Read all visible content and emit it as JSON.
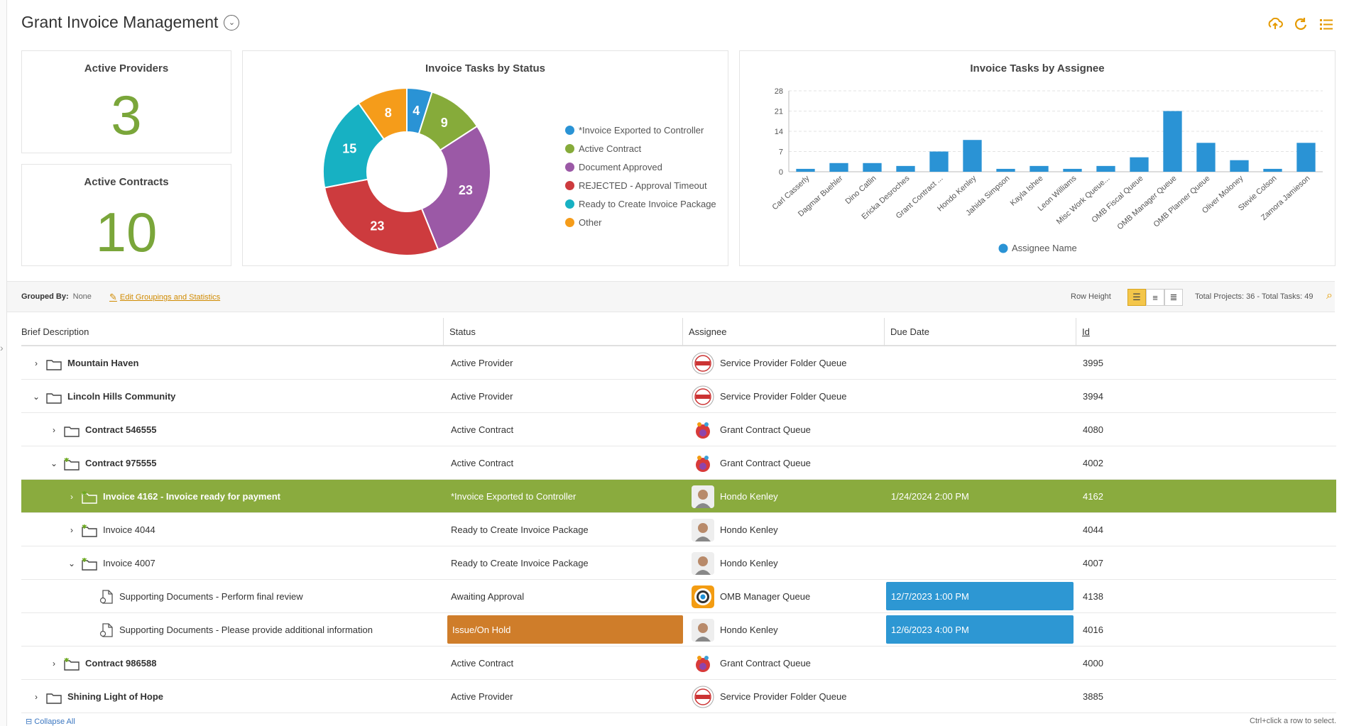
{
  "header": {
    "title": "Grant Invoice Management",
    "dropdown_icon": "chevron-down-icon",
    "icons": [
      "cloud-upload-icon",
      "refresh-icon",
      "list-icon"
    ]
  },
  "cards": {
    "active_providers": {
      "title": "Active Providers",
      "value": "3"
    },
    "active_contracts": {
      "title": "Active Contracts",
      "value": "10"
    }
  },
  "pie": {
    "title": "Invoice Tasks by Status",
    "slices": [
      {
        "label": "*Invoice Exported to Controller",
        "value": 4,
        "color": "#2a93d5"
      },
      {
        "label": "Active Contract",
        "value": 9,
        "color": "#86ab3a"
      },
      {
        "label": "Document Approved",
        "value": 23,
        "color": "#9b59a6"
      },
      {
        "label": "REJECTED - Approval Timeout",
        "value": 23,
        "color": "#cd3b3e"
      },
      {
        "label": "Ready to Create Invoice Package",
        "value": 15,
        "color": "#17b1c3"
      },
      {
        "label": "Other",
        "value": 8,
        "color": "#f59c1a"
      }
    ]
  },
  "chart_data": {
    "type": "bar",
    "title": "Invoice Tasks by Assignee",
    "categories": [
      "Carl Casserly",
      "Dagmar Buehler",
      "Dino Catlin",
      "Ericka Desroches",
      "Grant Contract ...",
      "Hondo Kenley",
      "Jahida Simpson",
      "Kayla Ishee",
      "Leon Williams",
      "Misc Work Queue...",
      "OMB Fiscal Queue",
      "OMB Manager Queue",
      "OMB Planner Queue",
      "Oliver Moloney",
      "Stevie Colson",
      "Zamora Jamieson"
    ],
    "series": [
      {
        "name": "Assignee Name",
        "values": [
          1,
          3,
          3,
          2,
          7,
          11,
          1,
          2,
          1,
          2,
          5,
          21,
          10,
          4,
          1,
          10
        ],
        "color": "#2a93d5"
      }
    ],
    "yticks": [
      "0",
      "7",
      "14",
      "21",
      "28"
    ],
    "ylim": [
      0,
      28
    ],
    "grid": true,
    "legend": "bottom"
  },
  "toolbar": {
    "grouped_label": "Grouped By:",
    "grouped_value": "None",
    "edit_link": "Edit Groupings and Statistics",
    "row_height_label": "Row Height",
    "totals": "Total Projects: 36 - Total Tasks: 49"
  },
  "table": {
    "columns": [
      "Brief Description",
      "Status",
      "Assignee",
      "Due Date",
      "Id"
    ],
    "rows": [
      {
        "name": "Mountain Haven",
        "status": "Active Provider",
        "assignee": "Service Provider Folder Queue",
        "due": "",
        "id": "3995",
        "indent": 0,
        "chev": "›",
        "icon": "folder",
        "avatar": "stamp",
        "bold": true
      },
      {
        "name": "Lincoln Hills Community",
        "status": "Active Provider",
        "assignee": "Service Provider Folder Queue",
        "due": "",
        "id": "3994",
        "indent": 0,
        "chev": "⌄",
        "icon": "folder",
        "avatar": "stamp",
        "bold": true
      },
      {
        "name": "Contract 546555",
        "status": "Active Contract",
        "assignee": "Grant Contract Queue",
        "due": "",
        "id": "4080",
        "indent": 1,
        "chev": "›",
        "icon": "folder",
        "avatar": "family",
        "bold": true
      },
      {
        "name": "Contract 975555",
        "status": "Active Contract",
        "assignee": "Grant Contract Queue",
        "due": "",
        "id": "4002",
        "indent": 1,
        "chev": "⌄",
        "icon": "folder-star",
        "avatar": "family",
        "bold": true
      },
      {
        "name": "Invoice 4162 - Invoice ready for payment",
        "status": "*Invoice Exported to Controller",
        "assignee": "Hondo Kenley",
        "due": "1/24/2024 2:00 PM",
        "id": "4162",
        "indent": 2,
        "chev": "›",
        "icon": "folder-star",
        "avatar": "person",
        "bold": true,
        "selected": true
      },
      {
        "name": "Invoice 4044",
        "status": "Ready to Create Invoice Package",
        "assignee": "Hondo Kenley",
        "due": "",
        "id": "4044",
        "indent": 2,
        "chev": "›",
        "icon": "folder-star",
        "avatar": "person",
        "bold": false
      },
      {
        "name": "Invoice 4007",
        "status": "Ready to Create Invoice Package",
        "assignee": "Hondo Kenley",
        "due": "",
        "id": "4007",
        "indent": 2,
        "chev": "⌄",
        "icon": "folder-star",
        "avatar": "person",
        "bold": false
      },
      {
        "name": "Supporting Documents - Perform final review",
        "status": "Awaiting Approval",
        "assignee": "OMB Manager Queue",
        "due": "12/7/2023 1:00 PM",
        "id": "4138",
        "indent": 3,
        "chev": "",
        "icon": "doc",
        "avatar": "target",
        "bold": false,
        "due_badge": true
      },
      {
        "name": "Supporting Documents - Please provide additional information",
        "status": "Issue/On Hold",
        "assignee": "Hondo Kenley",
        "due": "12/6/2023 4:00 PM",
        "id": "4016",
        "indent": 3,
        "chev": "",
        "icon": "doc",
        "avatar": "person",
        "bold": false,
        "due_badge": true,
        "status_badge": true
      },
      {
        "name": "Contract 986588",
        "status": "Active Contract",
        "assignee": "Grant Contract Queue",
        "due": "",
        "id": "4000",
        "indent": 1,
        "chev": "›",
        "icon": "folder-star",
        "avatar": "family",
        "bold": true
      },
      {
        "name": "Shining Light of Hope",
        "status": "Active Provider",
        "assignee": "Service Provider Folder Queue",
        "due": "",
        "id": "3885",
        "indent": 0,
        "chev": "›",
        "icon": "folder",
        "avatar": "stamp",
        "bold": true
      }
    ]
  },
  "footer": {
    "collapse_all": "Collapse All",
    "hint": "Ctrl+click a row to select."
  }
}
